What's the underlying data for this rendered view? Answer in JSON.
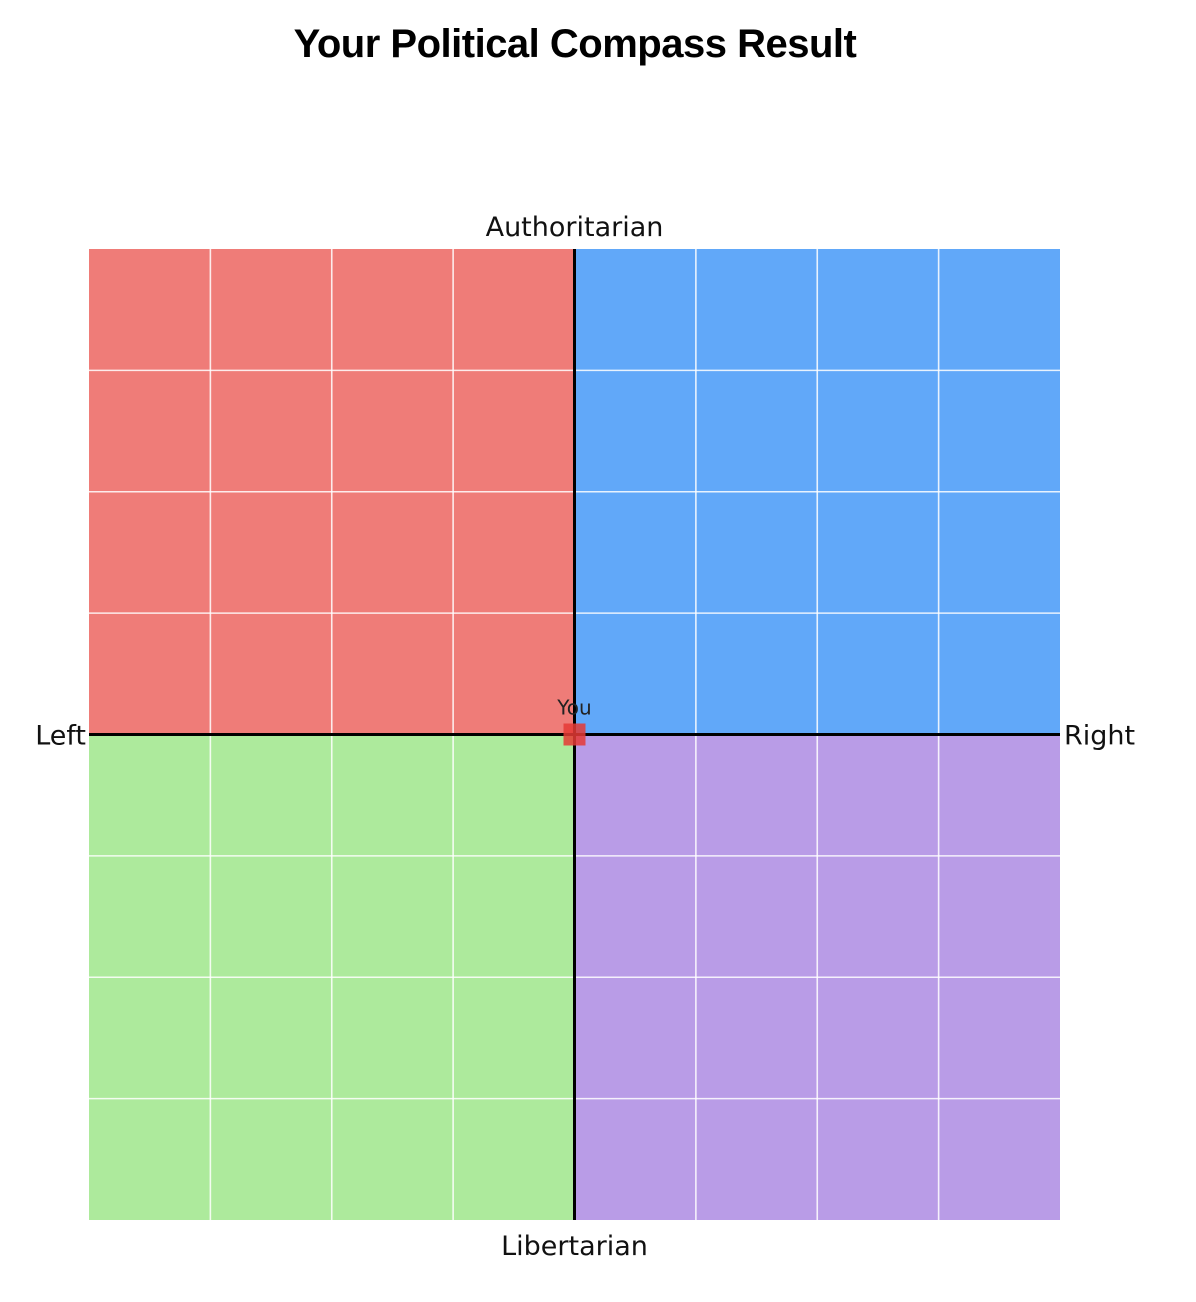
{
  "page": {
    "title": "Your Political Compass Result"
  },
  "chart_data": {
    "type": "scatter",
    "title": "Your Political Compass Result",
    "xlim": [
      -10,
      10
    ],
    "ylim": [
      -10,
      10
    ],
    "grid": true,
    "grid_step": 2.5,
    "axis_labels": {
      "top": "Authoritarian",
      "bottom": "Libertarian",
      "left": "Left",
      "right": "Right"
    },
    "quadrants": [
      {
        "name": "authoritarian-left",
        "x_range": [
          -10,
          0
        ],
        "y_range": [
          0,
          10
        ],
        "color": "#EF7C78"
      },
      {
        "name": "authoritarian-right",
        "x_range": [
          0,
          10
        ],
        "y_range": [
          0,
          10
        ],
        "color": "#61A8F9"
      },
      {
        "name": "libertarian-left",
        "x_range": [
          -10,
          0
        ],
        "y_range": [
          -10,
          0
        ],
        "color": "#ADEA9C"
      },
      {
        "name": "libertarian-right",
        "x_range": [
          0,
          10
        ],
        "y_range": [
          -10,
          0
        ],
        "color": "#B99CE7"
      }
    ],
    "points": [
      {
        "label": "You",
        "x": 0,
        "y": 0,
        "color": "#E53935"
      }
    ]
  }
}
